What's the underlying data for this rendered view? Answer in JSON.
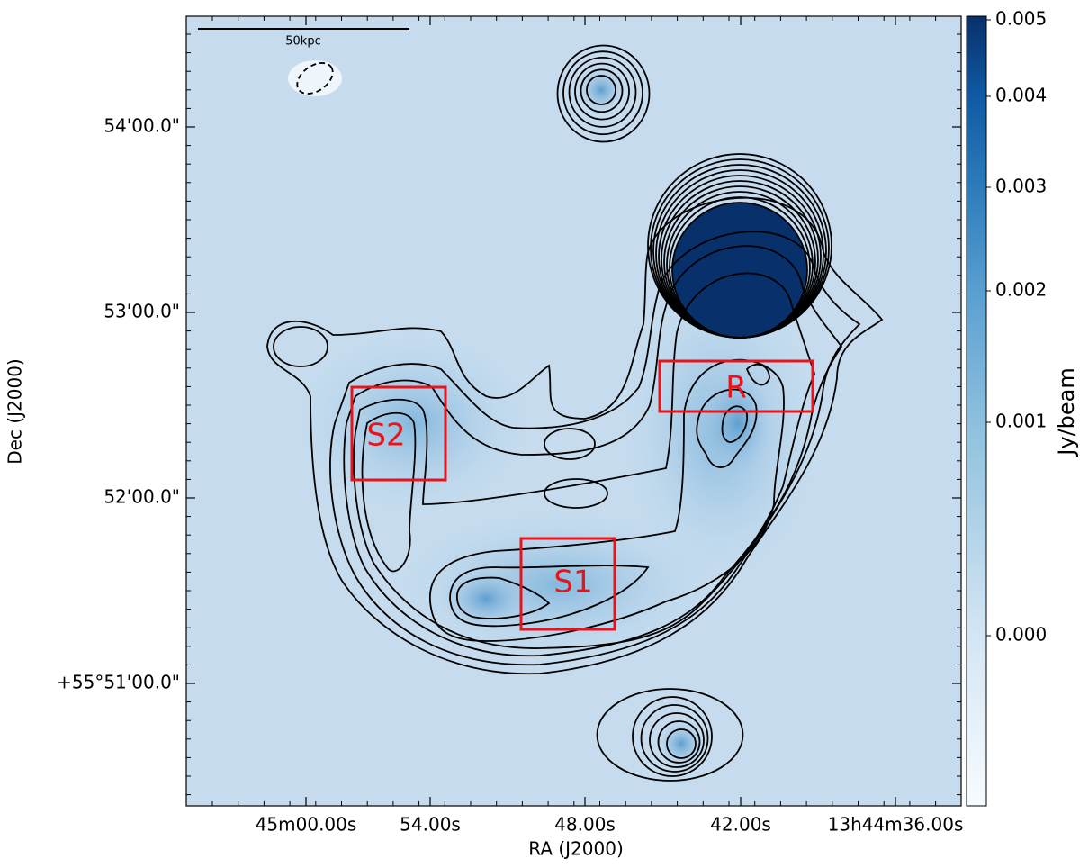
{
  "figure": {
    "x_axis_label": "RA (J2000)",
    "y_axis_label": "Dec (J2000)",
    "x_tick_labels": [
      "45m00.00s",
      "54.00s",
      "48.00s",
      "42.00s",
      "13h44m36.00s"
    ],
    "y_tick_labels": [
      "54'00.0\"",
      "53'00.0\"",
      "52'00.0\"",
      "+55°51'00.0\""
    ],
    "colorbar_label": "Jy/beam",
    "colorbar_tick_labels": [
      "0.005",
      "0.004",
      "0.003",
      "0.002",
      "0.001",
      "0.000"
    ],
    "scale_bar_label": "50kpc",
    "regions": [
      {
        "label": "S2"
      },
      {
        "label": "S1"
      },
      {
        "label": "R"
      }
    ]
  }
}
